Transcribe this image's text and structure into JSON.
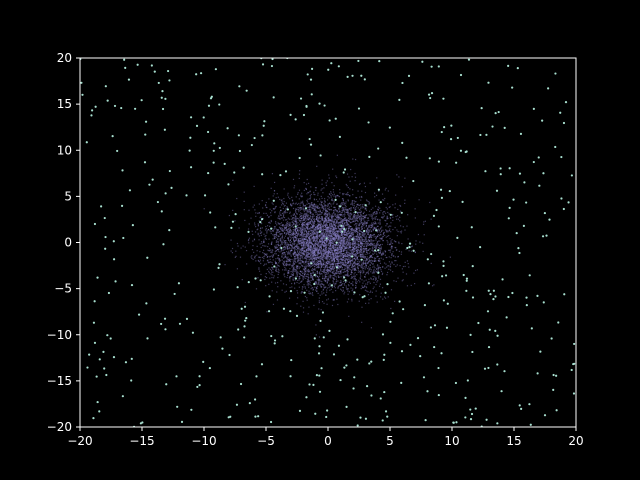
{
  "chart_data": {
    "type": "scatter",
    "title": "",
    "xlabel": "",
    "ylabel": "",
    "xlim": [
      -20,
      20
    ],
    "ylim": [
      -20,
      20
    ],
    "xticks": [
      -20,
      -15,
      -10,
      -5,
      0,
      5,
      10,
      15,
      20
    ],
    "yticks": [
      -20,
      -15,
      -10,
      -5,
      0,
      5,
      10,
      15,
      20
    ],
    "grid": false,
    "legend": "none",
    "background_color": "#000000",
    "axis_color": "#ffffff",
    "series": [
      {
        "distribution": "gaussian cluster",
        "center": [
          0,
          0
        ],
        "std": [
          2.5,
          2.5
        ],
        "count": 6000,
        "color": "#8a80c8"
      },
      {
        "distribution": "uniform",
        "range_x": [
          -20,
          20
        ],
        "range_y": [
          -20,
          20
        ],
        "count": 500,
        "color": "#a8e0d0"
      }
    ]
  }
}
